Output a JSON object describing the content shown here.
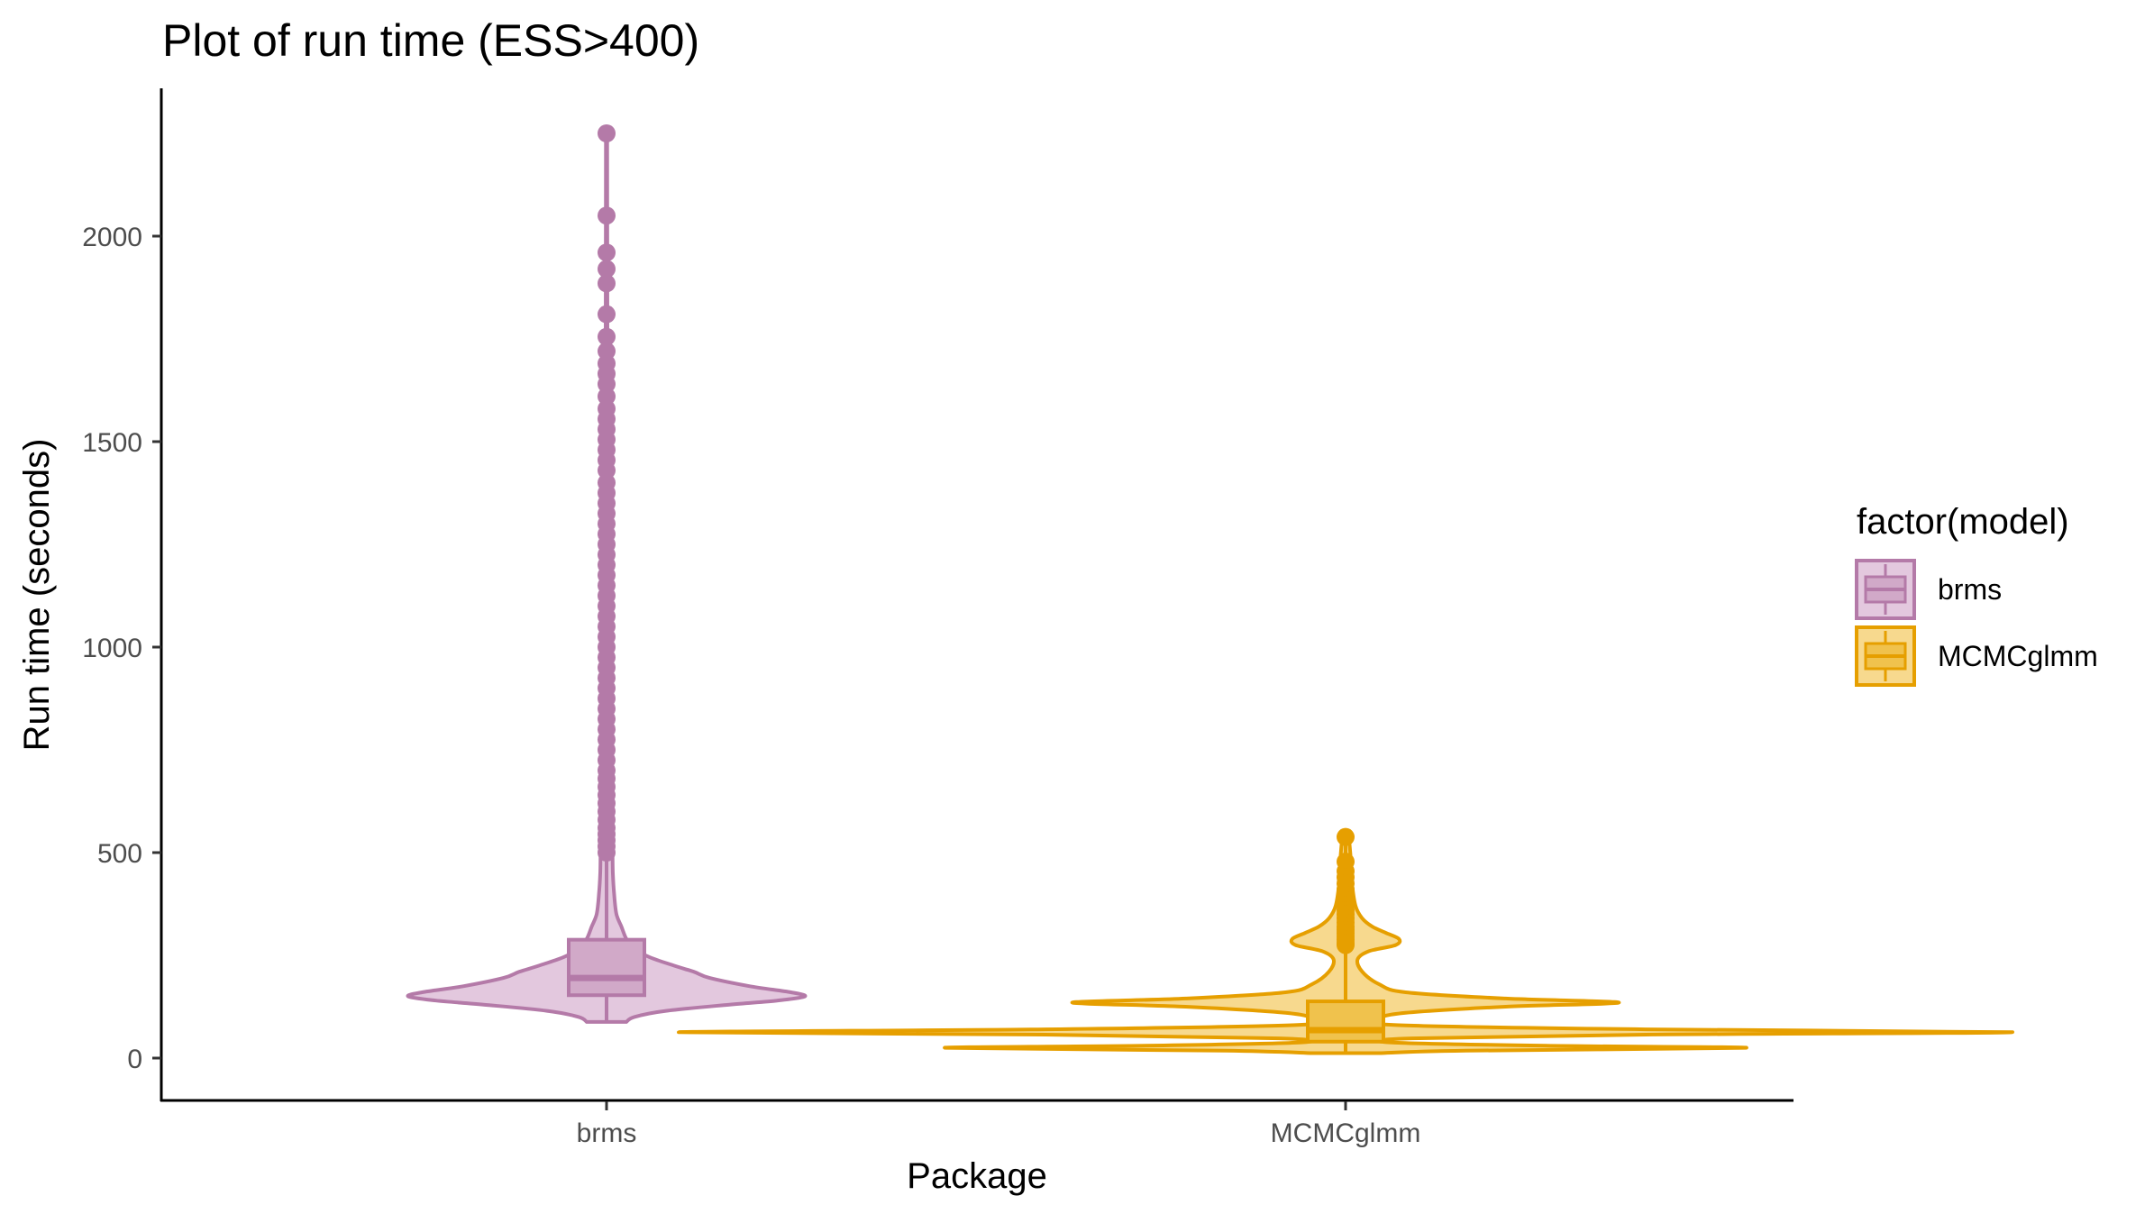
{
  "chart_data": {
    "type": "violin",
    "title": "Plot of run time (ESS>400)",
    "xlabel": "Package",
    "ylabel": "Run time (seconds)",
    "ylim": [
      -100,
      2360
    ],
    "yticks": [
      0,
      500,
      1000,
      1500,
      2000
    ],
    "categories": [
      "brms",
      "MCMCglmm"
    ],
    "grid": false,
    "legend": {
      "title": "factor(model)",
      "position": "right",
      "entries": [
        "brms",
        "MCMCglmm"
      ]
    },
    "series": [
      {
        "name": "brms",
        "color": "#b47aa8",
        "fill": "#e3c8de",
        "box_fill": "#d1a9c8",
        "violin_range": [
          88,
          2250
        ],
        "box": {
          "lower_whisker": 88,
          "q1": 153,
          "median": 195,
          "q3": 288,
          "upper_whisker": 480
        },
        "density": [
          [
            88,
            0.1
          ],
          [
            100,
            0.14
          ],
          [
            115,
            0.3
          ],
          [
            130,
            0.62
          ],
          [
            140,
            0.86
          ],
          [
            150,
            1.0
          ],
          [
            160,
            0.93
          ],
          [
            175,
            0.72
          ],
          [
            195,
            0.52
          ],
          [
            210,
            0.44
          ],
          [
            225,
            0.34
          ],
          [
            245,
            0.22
          ],
          [
            265,
            0.14
          ],
          [
            290,
            0.1
          ],
          [
            320,
            0.075
          ],
          [
            350,
            0.05
          ],
          [
            400,
            0.038
          ],
          [
            450,
            0.032
          ],
          [
            500,
            0.03
          ],
          [
            550,
            0.026
          ],
          [
            620,
            0.02
          ],
          [
            700,
            0.014
          ],
          [
            850,
            0.011
          ],
          [
            1000,
            0.009
          ],
          [
            1300,
            0.007
          ],
          [
            1600,
            0.005
          ],
          [
            1900,
            0.004
          ],
          [
            2250,
            0.003
          ]
        ],
        "outliers": [
          2250,
          2050,
          1960,
          1920,
          1885,
          1810,
          1755,
          1720,
          1690,
          1665,
          1640,
          1610,
          1580,
          1555,
          1530,
          1505,
          1480,
          1455,
          1430,
          1400,
          1375,
          1350,
          1325,
          1300,
          1275,
          1250,
          1225,
          1200,
          1175,
          1150,
          1125,
          1100,
          1075,
          1050,
          1025,
          1000,
          975,
          950,
          925,
          900,
          875,
          850,
          825,
          800,
          775,
          750,
          725,
          700,
          680,
          660,
          640,
          620,
          600,
          580,
          560,
          545,
          530,
          515,
          500
        ]
      },
      {
        "name": "MCMCglmm",
        "color": "#e69f00",
        "fill": "#f7d98e",
        "box_fill": "#f0c24d",
        "violin_range": [
          12,
          538
        ],
        "box": {
          "lower_whisker": 12,
          "q1": 40,
          "median": 68,
          "q3": 138,
          "upper_whisker": 270
        },
        "density": [
          [
            12,
            0.05
          ],
          [
            18,
            0.18
          ],
          [
            25,
            0.6
          ],
          [
            30,
            0.3
          ],
          [
            38,
            0.07
          ],
          [
            48,
            0.1
          ],
          [
            57,
            0.45
          ],
          [
            63,
            1.0
          ],
          [
            70,
            0.45
          ],
          [
            80,
            0.08
          ],
          [
            95,
            0.05
          ],
          [
            110,
            0.09
          ],
          [
            125,
            0.24
          ],
          [
            135,
            0.41
          ],
          [
            145,
            0.24
          ],
          [
            160,
            0.09
          ],
          [
            180,
            0.05
          ],
          [
            210,
            0.025
          ],
          [
            240,
            0.018
          ],
          [
            260,
            0.035
          ],
          [
            275,
            0.075
          ],
          [
            290,
            0.08
          ],
          [
            305,
            0.06
          ],
          [
            320,
            0.04
          ],
          [
            340,
            0.025
          ],
          [
            370,
            0.015
          ],
          [
            420,
            0.01
          ],
          [
            480,
            0.008
          ],
          [
            538,
            0.005
          ]
        ],
        "outliers": [
          538,
          478,
          455,
          440,
          425,
          410,
          398,
          385,
          372,
          360,
          350,
          340,
          330,
          320,
          312,
          304,
          296,
          288,
          280,
          275
        ]
      }
    ]
  }
}
